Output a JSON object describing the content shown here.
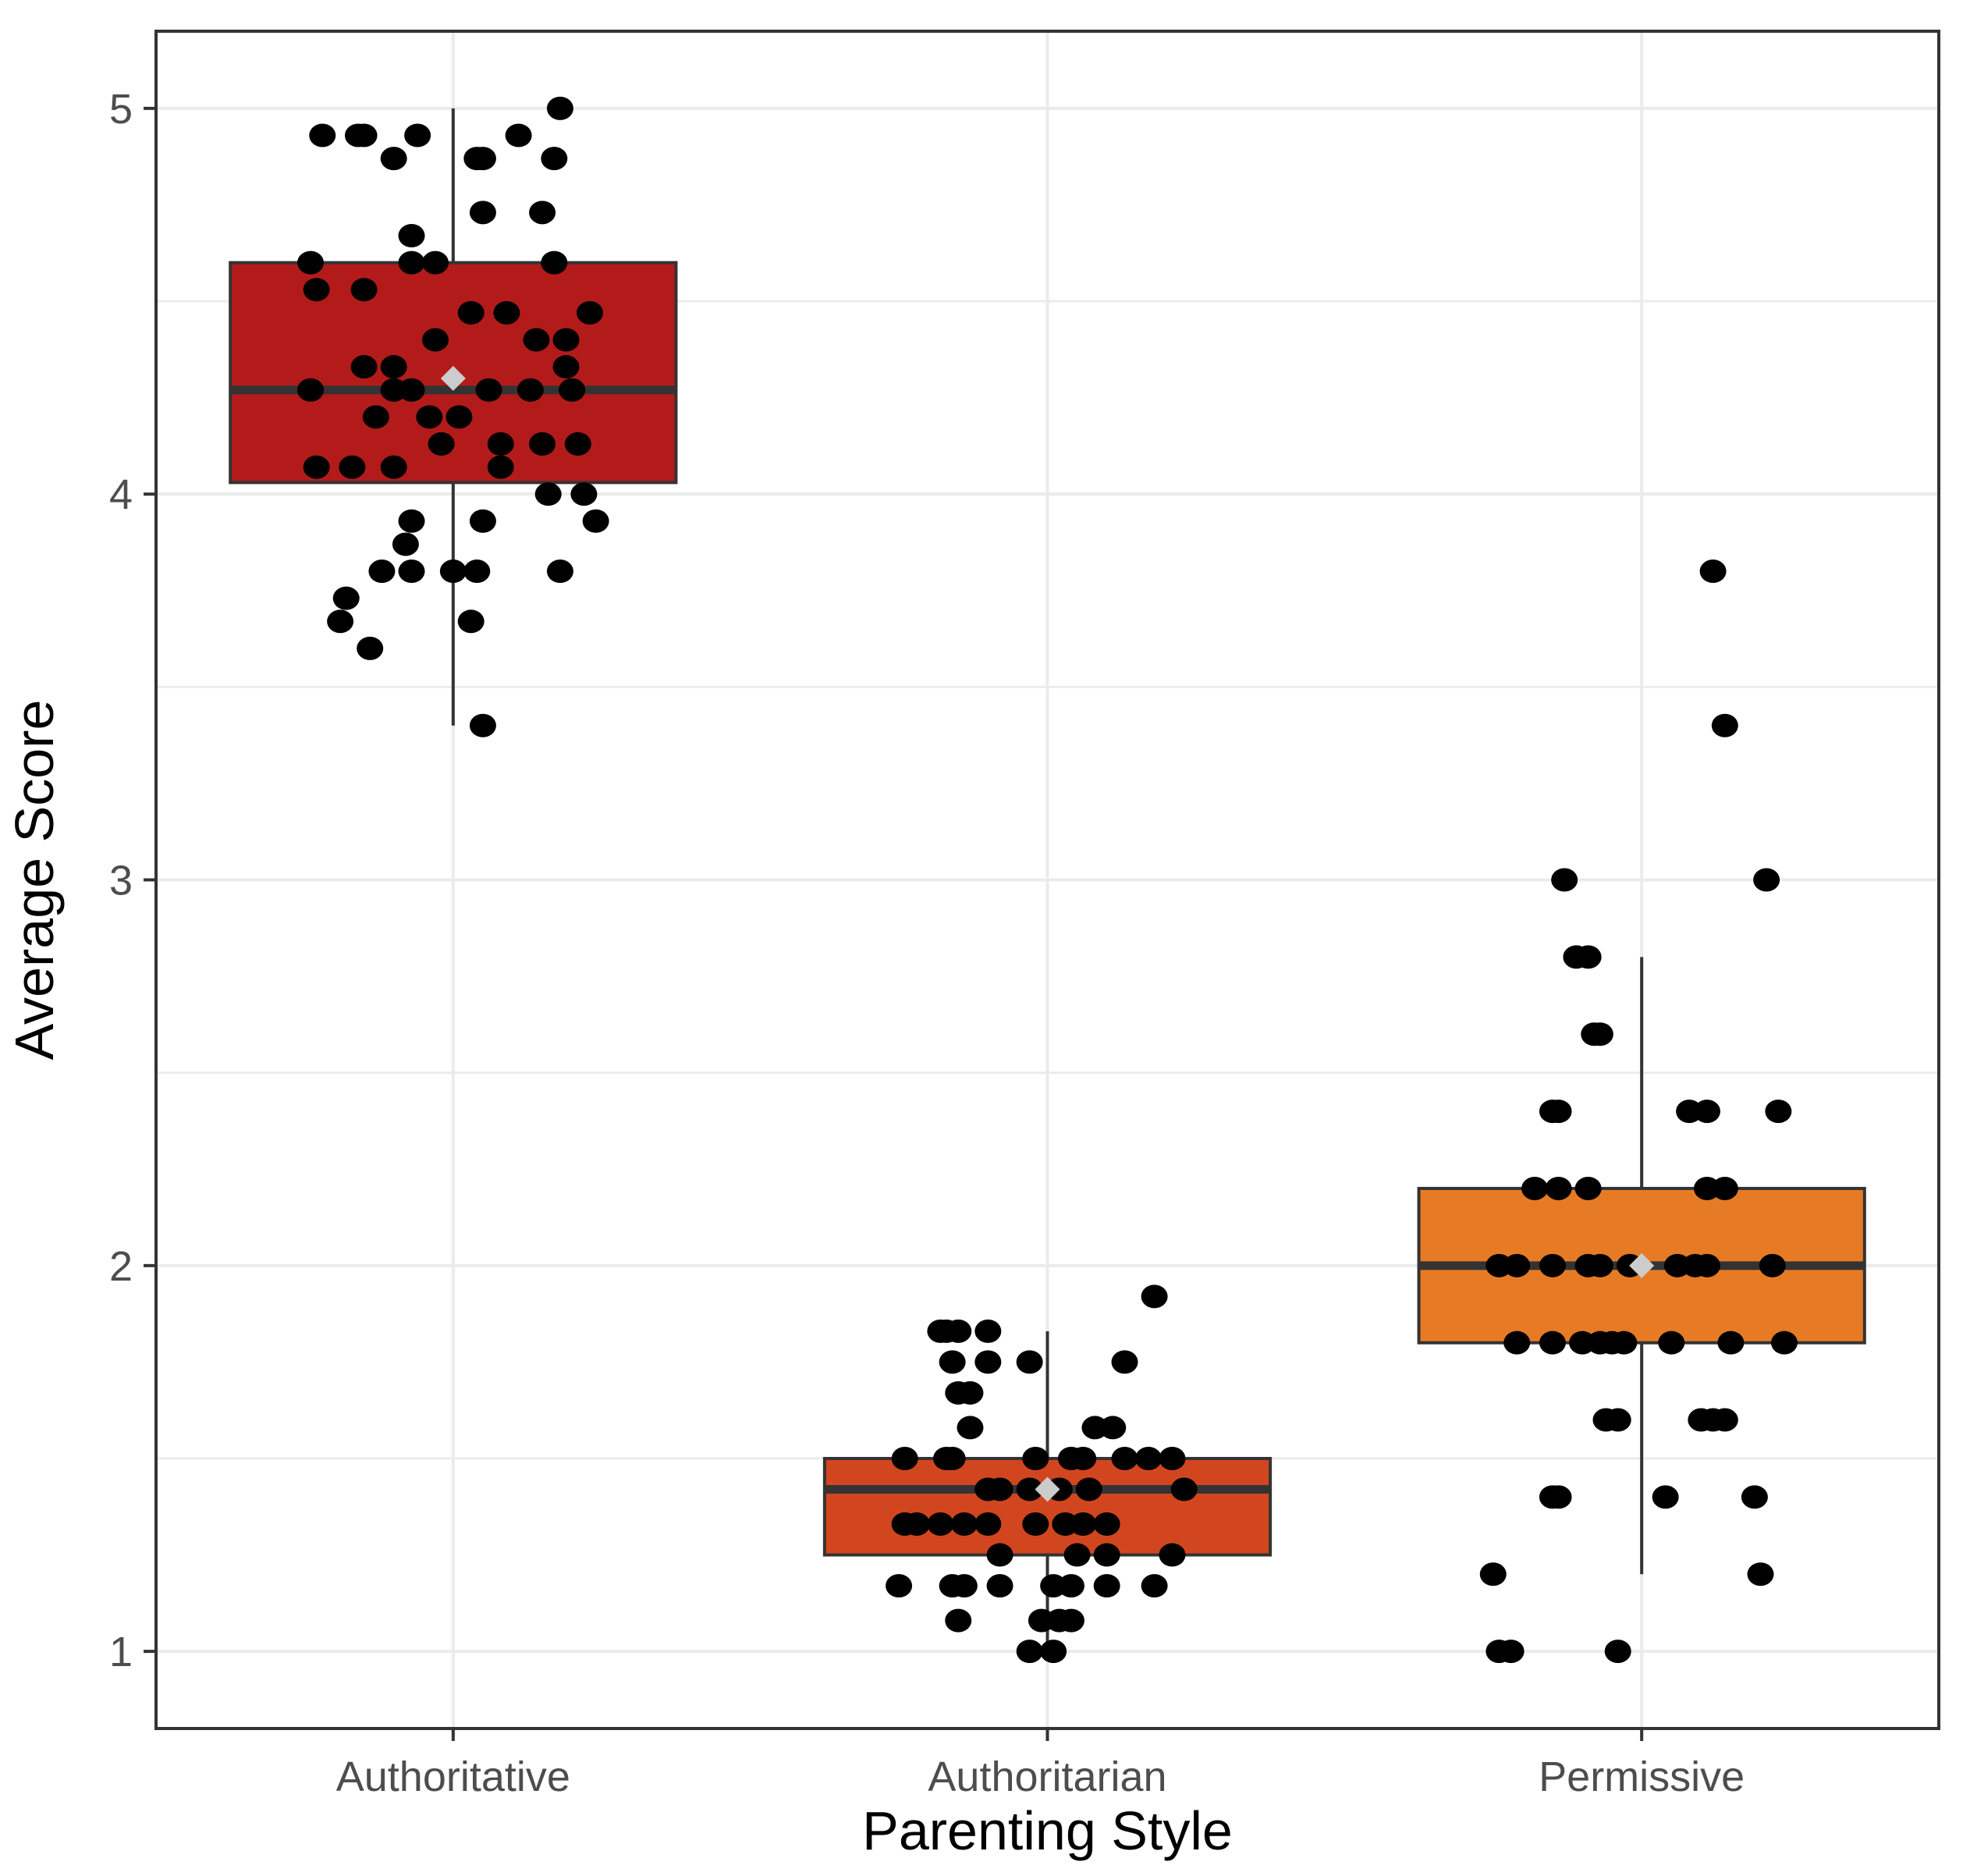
{
  "colors": {
    "background": "#ffffff",
    "grid": "#ebebeb",
    "panel_border": "#333333",
    "point": "#000000",
    "median": "#333333",
    "mean_marker": "#cccccc",
    "box_outline": "#333333"
  },
  "chart_data": {
    "type": "box",
    "title": "",
    "xlabel": "Parenting Style",
    "ylabel": "Average Score",
    "ylim": [
      0.8,
      5.2
    ],
    "yticks": [
      1,
      2,
      3,
      4,
      5
    ],
    "grid": true,
    "categories": [
      "Authoritative",
      "Authoritarian",
      "Permissive"
    ],
    "boxes": [
      {
        "name": "Authoritative",
        "color": "#b31b1b",
        "whisker_low": 3.4,
        "q1": 4.03,
        "median": 4.27,
        "q3": 4.6,
        "whisker_high": 5.0,
        "mean": 4.3,
        "points": [
          [
            -0.22,
            4.93
          ],
          [
            -0.15,
            4.93
          ],
          [
            -0.16,
            4.93
          ],
          [
            -0.1,
            4.87
          ],
          [
            -0.06,
            4.93
          ],
          [
            0.04,
            4.87
          ],
          [
            0.05,
            4.87
          ],
          [
            0.11,
            4.93
          ],
          [
            0.17,
            4.87
          ],
          [
            0.18,
            5.0
          ],
          [
            0.05,
            4.73
          ],
          [
            0.15,
            4.73
          ],
          [
            -0.07,
            4.67
          ],
          [
            -0.24,
            4.6
          ],
          [
            -0.07,
            4.6
          ],
          [
            -0.03,
            4.6
          ],
          [
            0.17,
            4.6
          ],
          [
            -0.23,
            4.53
          ],
          [
            -0.15,
            4.53
          ],
          [
            0.03,
            4.47
          ],
          [
            0.09,
            4.47
          ],
          [
            0.23,
            4.47
          ],
          [
            -0.03,
            4.4
          ],
          [
            0.14,
            4.4
          ],
          [
            0.19,
            4.4
          ],
          [
            -0.15,
            4.33
          ],
          [
            -0.1,
            4.33
          ],
          [
            0.19,
            4.33
          ],
          [
            -0.24,
            4.27
          ],
          [
            -0.1,
            4.27
          ],
          [
            -0.07,
            4.27
          ],
          [
            0.06,
            4.27
          ],
          [
            0.13,
            4.27
          ],
          [
            0.2,
            4.27
          ],
          [
            -0.13,
            4.2
          ],
          [
            -0.04,
            4.2
          ],
          [
            0.01,
            4.2
          ],
          [
            -0.02,
            4.13
          ],
          [
            0.08,
            4.13
          ],
          [
            0.15,
            4.13
          ],
          [
            0.21,
            4.13
          ],
          [
            -0.23,
            4.07
          ],
          [
            -0.17,
            4.07
          ],
          [
            -0.1,
            4.07
          ],
          [
            0.08,
            4.07
          ],
          [
            0.16,
            4.0
          ],
          [
            0.22,
            4.0
          ],
          [
            -0.07,
            3.93
          ],
          [
            0.05,
            3.93
          ],
          [
            0.24,
            3.93
          ],
          [
            -0.08,
            3.87
          ],
          [
            -0.12,
            3.8
          ],
          [
            -0.07,
            3.8
          ],
          [
            0.0,
            3.8
          ],
          [
            0.04,
            3.8
          ],
          [
            0.18,
            3.8
          ],
          [
            -0.18,
            3.73
          ],
          [
            -0.19,
            3.67
          ],
          [
            0.03,
            3.67
          ],
          [
            -0.14,
            3.6
          ],
          [
            0.05,
            3.4
          ]
        ]
      },
      {
        "name": "Authoritarian",
        "color": "#d2461f",
        "whisker_low": 1.0,
        "q1": 1.25,
        "median": 1.42,
        "q3": 1.5,
        "whisker_high": 1.83,
        "mean": 1.42,
        "points": [
          [
            -0.18,
            1.83
          ],
          [
            -0.17,
            1.83
          ],
          [
            -0.15,
            1.83
          ],
          [
            -0.1,
            1.83
          ],
          [
            0.18,
            1.92
          ],
          [
            -0.16,
            1.75
          ],
          [
            -0.1,
            1.75
          ],
          [
            -0.03,
            1.75
          ],
          [
            0.13,
            1.75
          ],
          [
            -0.15,
            1.67
          ],
          [
            -0.13,
            1.67
          ],
          [
            -0.13,
            1.58
          ],
          [
            0.08,
            1.58
          ],
          [
            0.11,
            1.58
          ],
          [
            -0.24,
            1.5
          ],
          [
            -0.17,
            1.5
          ],
          [
            -0.16,
            1.5
          ],
          [
            -0.02,
            1.5
          ],
          [
            0.04,
            1.5
          ],
          [
            0.06,
            1.5
          ],
          [
            0.13,
            1.5
          ],
          [
            0.17,
            1.5
          ],
          [
            0.21,
            1.5
          ],
          [
            -0.1,
            1.42
          ],
          [
            -0.08,
            1.42
          ],
          [
            -0.03,
            1.42
          ],
          [
            0.02,
            1.42
          ],
          [
            0.07,
            1.42
          ],
          [
            0.23,
            1.42
          ],
          [
            -0.24,
            1.33
          ],
          [
            -0.22,
            1.33
          ],
          [
            -0.18,
            1.33
          ],
          [
            -0.14,
            1.33
          ],
          [
            -0.1,
            1.33
          ],
          [
            -0.02,
            1.33
          ],
          [
            0.03,
            1.33
          ],
          [
            0.06,
            1.33
          ],
          [
            0.1,
            1.33
          ],
          [
            -0.08,
            1.25
          ],
          [
            0.05,
            1.25
          ],
          [
            0.1,
            1.25
          ],
          [
            0.21,
            1.25
          ],
          [
            -0.25,
            1.17
          ],
          [
            -0.16,
            1.17
          ],
          [
            -0.14,
            1.17
          ],
          [
            -0.08,
            1.17
          ],
          [
            0.01,
            1.17
          ],
          [
            0.04,
            1.17
          ],
          [
            0.1,
            1.17
          ],
          [
            0.18,
            1.17
          ],
          [
            -0.15,
            1.08
          ],
          [
            -0.01,
            1.08
          ],
          [
            0.02,
            1.08
          ],
          [
            0.04,
            1.08
          ],
          [
            -0.03,
            1.0
          ],
          [
            0.01,
            1.0
          ]
        ]
      },
      {
        "name": "Permissive",
        "color": "#e77b25",
        "whisker_low": 1.2,
        "q1": 1.8,
        "median": 2.0,
        "q3": 2.2,
        "whisker_high": 2.8,
        "mean": 2.0,
        "points": [
          [
            0.12,
            3.8
          ],
          [
            0.14,
            3.4
          ],
          [
            -0.13,
            3.0
          ],
          [
            0.21,
            3.0
          ],
          [
            -0.11,
            2.8
          ],
          [
            -0.09,
            2.8
          ],
          [
            -0.07,
            2.6
          ],
          [
            -0.08,
            2.6
          ],
          [
            -0.15,
            2.4
          ],
          [
            -0.14,
            2.4
          ],
          [
            0.08,
            2.4
          ],
          [
            0.11,
            2.4
          ],
          [
            0.23,
            2.4
          ],
          [
            -0.18,
            2.2
          ],
          [
            -0.14,
            2.2
          ],
          [
            -0.09,
            2.2
          ],
          [
            0.11,
            2.2
          ],
          [
            0.14,
            2.2
          ],
          [
            -0.24,
            2.0
          ],
          [
            -0.21,
            2.0
          ],
          [
            -0.15,
            2.0
          ],
          [
            -0.09,
            2.0
          ],
          [
            -0.07,
            2.0
          ],
          [
            -0.02,
            2.0
          ],
          [
            0.06,
            2.0
          ],
          [
            0.09,
            2.0
          ],
          [
            0.11,
            2.0
          ],
          [
            0.22,
            2.0
          ],
          [
            -0.21,
            1.8
          ],
          [
            -0.15,
            1.8
          ],
          [
            -0.1,
            1.8
          ],
          [
            -0.07,
            1.8
          ],
          [
            -0.05,
            1.8
          ],
          [
            -0.03,
            1.8
          ],
          [
            0.05,
            1.8
          ],
          [
            0.15,
            1.8
          ],
          [
            0.24,
            1.8
          ],
          [
            -0.06,
            1.6
          ],
          [
            -0.04,
            1.6
          ],
          [
            0.1,
            1.6
          ],
          [
            0.12,
            1.6
          ],
          [
            0.14,
            1.6
          ],
          [
            -0.15,
            1.4
          ],
          [
            -0.14,
            1.4
          ],
          [
            0.04,
            1.4
          ],
          [
            0.19,
            1.4
          ],
          [
            -0.25,
            1.2
          ],
          [
            0.2,
            1.2
          ],
          [
            -0.24,
            1.0
          ],
          [
            -0.22,
            1.0
          ],
          [
            -0.04,
            1.0
          ]
        ]
      }
    ]
  }
}
